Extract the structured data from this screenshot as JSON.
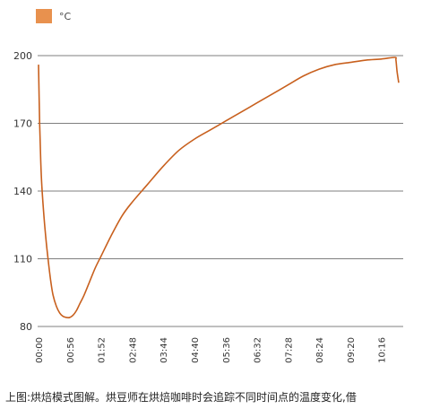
{
  "legend": {
    "label": "°C",
    "swatch_color": "#e8914e"
  },
  "caption": "上图:烘焙模式图解。烘豆师在烘焙咖啡时会追踪不同时间点的温度变化,借",
  "chart_data": {
    "type": "line",
    "title": "",
    "xlabel": "",
    "ylabel": "",
    "x_ticks": [
      "00:00",
      "00:56",
      "01:52",
      "02:48",
      "03:44",
      "04:40",
      "05:36",
      "06:32",
      "07:28",
      "08:24",
      "09:20",
      "10:16"
    ],
    "y_ticks": [
      80,
      110,
      140,
      170,
      200
    ],
    "ylim": [
      80,
      200
    ],
    "xlim_seconds": [
      0,
      647
    ],
    "grid": "horizontal",
    "line_color": "#c8601e",
    "series": [
      {
        "name": "°C",
        "x": [
          "00:00",
          "00:02",
          "00:04",
          "00:06",
          "00:10",
          "00:14",
          "00:18",
          "00:22",
          "00:26",
          "00:32",
          "00:38",
          "00:44",
          "00:50",
          "00:56",
          "01:02",
          "01:08",
          "01:14",
          "01:22",
          "01:32",
          "01:42",
          "01:52",
          "02:10",
          "02:30",
          "02:48",
          "03:16",
          "03:44",
          "04:12",
          "04:40",
          "05:08",
          "05:36",
          "06:04",
          "06:32",
          "07:00",
          "07:28",
          "07:56",
          "08:24",
          "08:52",
          "09:20",
          "09:48",
          "10:16",
          "10:40",
          "10:42",
          "10:44",
          "10:47"
        ],
        "y": [
          196,
          170,
          153,
          142,
          128,
          117,
          108,
          100,
          94,
          89,
          86,
          84.5,
          84,
          84,
          85,
          87,
          90,
          94,
          100,
          106,
          111,
          120,
          129,
          135,
          143,
          151,
          158,
          163,
          167,
          171,
          175,
          179,
          183,
          187,
          191,
          194,
          196,
          197,
          198,
          198.5,
          199.2,
          198,
          193,
          188
        ]
      }
    ]
  }
}
